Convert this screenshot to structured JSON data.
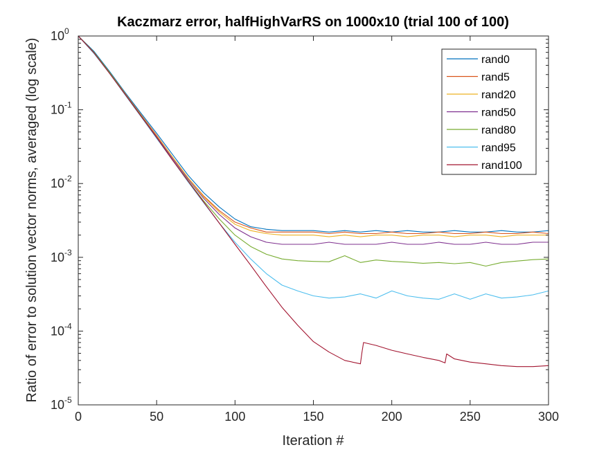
{
  "chart_data": {
    "type": "line",
    "title": "Kaczmarz error, halfHighVarRS on 1000x10 (trial 100 of 100)",
    "xlabel": "Iteration #",
    "ylabel": "Ratio of error to solution vector norms, averaged (log scale)",
    "xlim": [
      0,
      300
    ],
    "ylim": [
      1e-05,
      1
    ],
    "yscale": "log",
    "grid": false,
    "legend_position": "top-right",
    "x_ticks": [
      0,
      50,
      100,
      150,
      200,
      250,
      300
    ],
    "y_ticks": [
      {
        "base": "10",
        "exp": "0",
        "value": 1
      },
      {
        "base": "10",
        "exp": "-1",
        "value": 0.1
      },
      {
        "base": "10",
        "exp": "-2",
        "value": 0.01
      },
      {
        "base": "10",
        "exp": "-3",
        "value": 0.001
      },
      {
        "base": "10",
        "exp": "-4",
        "value": 0.0001
      },
      {
        "base": "10",
        "exp": "-5",
        "value": 1e-05
      }
    ],
    "series": [
      {
        "name": "rand0",
        "color": "#0072BD",
        "x": [
          0,
          10,
          20,
          30,
          40,
          50,
          60,
          70,
          80,
          90,
          100,
          110,
          120,
          130,
          140,
          150,
          160,
          170,
          180,
          190,
          200,
          210,
          220,
          230,
          240,
          250,
          260,
          270,
          280,
          290,
          300
        ],
        "y": [
          1,
          0.62,
          0.33,
          0.17,
          0.09,
          0.048,
          0.025,
          0.013,
          0.0075,
          0.0048,
          0.0033,
          0.0026,
          0.0024,
          0.0023,
          0.0023,
          0.0023,
          0.0022,
          0.0023,
          0.0022,
          0.0023,
          0.0022,
          0.0023,
          0.0022,
          0.0022,
          0.0023,
          0.0022,
          0.0022,
          0.0023,
          0.0022,
          0.0022,
          0.0023
        ]
      },
      {
        "name": "rand5",
        "color": "#D95319",
        "x": [
          0,
          10,
          20,
          30,
          40,
          50,
          60,
          70,
          80,
          90,
          100,
          110,
          120,
          130,
          140,
          150,
          160,
          170,
          180,
          190,
          200,
          210,
          220,
          230,
          240,
          250,
          260,
          270,
          280,
          290,
          300
        ],
        "y": [
          1,
          0.6,
          0.32,
          0.165,
          0.086,
          0.045,
          0.023,
          0.012,
          0.0068,
          0.0043,
          0.003,
          0.0025,
          0.0022,
          0.0022,
          0.0022,
          0.0022,
          0.0021,
          0.0022,
          0.0021,
          0.0021,
          0.0022,
          0.0021,
          0.0021,
          0.0022,
          0.0021,
          0.0021,
          0.0022,
          0.0021,
          0.0021,
          0.0022,
          0.0021
        ]
      },
      {
        "name": "rand20",
        "color": "#EDB120",
        "x": [
          0,
          10,
          20,
          30,
          40,
          50,
          60,
          70,
          80,
          90,
          100,
          110,
          120,
          130,
          140,
          150,
          160,
          170,
          180,
          190,
          200,
          210,
          220,
          230,
          240,
          250,
          260,
          270,
          280,
          290,
          300
        ],
        "y": [
          1,
          0.6,
          0.32,
          0.165,
          0.085,
          0.044,
          0.023,
          0.012,
          0.0066,
          0.0041,
          0.0028,
          0.0023,
          0.0021,
          0.002,
          0.002,
          0.002,
          0.0019,
          0.002,
          0.0019,
          0.002,
          0.002,
          0.0019,
          0.002,
          0.002,
          0.0019,
          0.002,
          0.002,
          0.0019,
          0.002,
          0.002,
          0.002
        ]
      },
      {
        "name": "rand50",
        "color": "#7E2F8E",
        "x": [
          0,
          10,
          20,
          30,
          40,
          50,
          60,
          70,
          80,
          90,
          100,
          110,
          120,
          130,
          140,
          150,
          160,
          170,
          180,
          190,
          200,
          210,
          220,
          230,
          240,
          250,
          260,
          270,
          280,
          290,
          300
        ],
        "y": [
          1,
          0.6,
          0.32,
          0.163,
          0.084,
          0.043,
          0.022,
          0.0115,
          0.0063,
          0.0038,
          0.0025,
          0.0019,
          0.0016,
          0.0015,
          0.0015,
          0.0015,
          0.0016,
          0.0015,
          0.0015,
          0.0015,
          0.0016,
          0.0015,
          0.0015,
          0.0016,
          0.0015,
          0.0015,
          0.0016,
          0.0015,
          0.0015,
          0.0016,
          0.0016
        ]
      },
      {
        "name": "rand80",
        "color": "#77AC30",
        "x": [
          0,
          10,
          20,
          30,
          40,
          50,
          60,
          70,
          80,
          90,
          100,
          110,
          120,
          130,
          140,
          150,
          160,
          170,
          180,
          190,
          200,
          210,
          220,
          230,
          240,
          250,
          260,
          270,
          280,
          290,
          300
        ],
        "y": [
          1,
          0.6,
          0.32,
          0.162,
          0.083,
          0.042,
          0.021,
          0.011,
          0.0058,
          0.0033,
          0.002,
          0.0014,
          0.0011,
          0.00095,
          0.0009,
          0.00088,
          0.00087,
          0.00105,
          0.00085,
          0.00092,
          0.00088,
          0.00086,
          0.00083,
          0.00085,
          0.00082,
          0.00085,
          0.00076,
          0.00085,
          0.00089,
          0.00093,
          0.00095
        ]
      },
      {
        "name": "rand95",
        "color": "#4DBEEE",
        "x": [
          0,
          10,
          20,
          30,
          40,
          50,
          60,
          70,
          80,
          90,
          100,
          110,
          120,
          130,
          140,
          150,
          160,
          170,
          180,
          190,
          200,
          210,
          220,
          230,
          240,
          250,
          260,
          270,
          280,
          290,
          300
        ],
        "y": [
          1,
          0.58,
          0.31,
          0.158,
          0.081,
          0.041,
          0.021,
          0.0106,
          0.0055,
          0.0029,
          0.0016,
          0.00095,
          0.0006,
          0.00042,
          0.00035,
          0.0003,
          0.00028,
          0.00029,
          0.00032,
          0.00028,
          0.00035,
          0.0003,
          0.00028,
          0.00027,
          0.00032,
          0.00027,
          0.00032,
          0.00028,
          0.00029,
          0.00031,
          0.00035
        ]
      },
      {
        "name": "rand100",
        "color": "#A2142F",
        "x": [
          0,
          10,
          20,
          30,
          40,
          50,
          60,
          70,
          80,
          90,
          100,
          110,
          120,
          130,
          140,
          150,
          160,
          170,
          180,
          181,
          182,
          190,
          200,
          210,
          220,
          230,
          234,
          235,
          240,
          250,
          260,
          270,
          280,
          290,
          300
        ],
        "y": [
          1,
          0.59,
          0.31,
          0.16,
          0.082,
          0.042,
          0.021,
          0.0108,
          0.0056,
          0.0029,
          0.0015,
          0.00078,
          0.0004,
          0.00021,
          0.00012,
          7.2e-05,
          5.2e-05,
          4e-05,
          3.6e-05,
          5.2e-05,
          7e-05,
          6.4e-05,
          5.5e-05,
          4.9e-05,
          4.4e-05,
          4e-05,
          3.7e-05,
          4.9e-05,
          4.2e-05,
          3.8e-05,
          3.6e-05,
          3.4e-05,
          3.3e-05,
          3.3e-05,
          3.4e-05
        ]
      }
    ]
  }
}
